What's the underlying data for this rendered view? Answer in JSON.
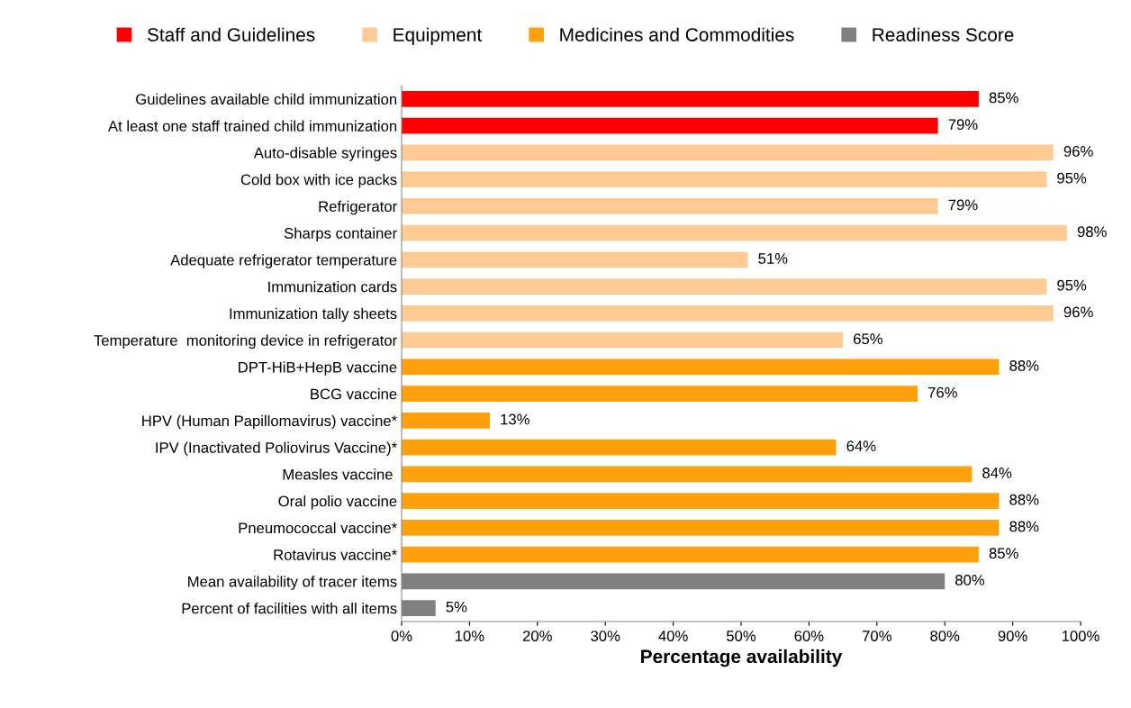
{
  "chart_data": {
    "type": "bar",
    "orientation": "horizontal",
    "xlabel": "Percentage availability",
    "categories": [
      "Guidelines available child immunization",
      "At least one staff trained child immunization",
      "Auto-disable syringes",
      "Cold box with ice packs",
      "Refrigerator",
      "Sharps container",
      "Adequate refrigerator temperature",
      "Immunization cards",
      "Immunization tally sheets",
      "Temperature  monitoring device in refrigerator",
      "DPT-HiB+HepB vaccine",
      "BCG vaccine",
      "HPV (Human Papillomavirus) vaccine*",
      "IPV (Inactivated Poliovirus Vaccine)*",
      "Measles vaccine ",
      "Oral polio vaccine",
      "Pneumococcal vaccine*",
      "Rotavirus vaccine*",
      "Mean availability of tracer items",
      "Percent of facilities with all items"
    ],
    "series": [
      {
        "name": "Staff and Guidelines",
        "color": "#ff0000",
        "values": [
          85,
          79,
          null,
          null,
          null,
          null,
          null,
          null,
          null,
          null,
          null,
          null,
          null,
          null,
          null,
          null,
          null,
          null,
          null,
          null
        ],
        "value_labels": [
          "85%",
          "79%",
          null,
          null,
          null,
          null,
          null,
          null,
          null,
          null,
          null,
          null,
          null,
          null,
          null,
          null,
          null,
          null,
          null,
          null
        ]
      },
      {
        "name": "Equipment",
        "color": "#fecb94",
        "values": [
          null,
          null,
          96,
          95,
          79,
          98,
          51,
          95,
          96,
          65,
          null,
          null,
          null,
          null,
          null,
          null,
          null,
          null,
          null,
          null
        ],
        "value_labels": [
          null,
          null,
          "96%",
          "95%",
          "79%",
          "98%",
          "51%",
          "95%",
          "96%",
          "65%",
          null,
          null,
          null,
          null,
          null,
          null,
          null,
          null,
          null,
          null
        ]
      },
      {
        "name": "Medicines and Commodities",
        "color": "#ffa10c",
        "values": [
          null,
          null,
          null,
          null,
          null,
          null,
          null,
          null,
          null,
          null,
          88,
          76,
          13,
          64,
          84,
          88,
          88,
          85,
          null,
          null
        ],
        "value_labels": [
          null,
          null,
          null,
          null,
          null,
          null,
          null,
          null,
          null,
          null,
          "88%",
          "76%",
          "13%",
          "64%",
          "84%",
          "88%",
          "88%",
          "85%",
          null,
          null
        ]
      },
      {
        "name": "Readiness Score",
        "color": "#808080",
        "values": [
          null,
          null,
          null,
          null,
          null,
          null,
          null,
          null,
          null,
          null,
          null,
          null,
          null,
          null,
          null,
          null,
          null,
          null,
          80,
          5
        ],
        "value_labels": [
          null,
          null,
          null,
          null,
          null,
          null,
          null,
          null,
          null,
          null,
          null,
          null,
          null,
          null,
          null,
          null,
          null,
          null,
          "80%",
          "5%"
        ]
      }
    ],
    "xlim": [
      0,
      100
    ],
    "xticks": [
      {
        "value": 0,
        "label": "0%"
      },
      {
        "value": 10,
        "label": "10%"
      },
      {
        "value": 20,
        "label": "20%"
      },
      {
        "value": 30,
        "label": "30%"
      },
      {
        "value": 40,
        "label": "40%"
      },
      {
        "value": 50,
        "label": "50%"
      },
      {
        "value": 60,
        "label": "60%"
      },
      {
        "value": 70,
        "label": "70%"
      },
      {
        "value": 80,
        "label": "80%"
      },
      {
        "value": 90,
        "label": "90%"
      },
      {
        "value": 100,
        "label": "100%"
      }
    ],
    "grid": false,
    "legend": "top"
  }
}
